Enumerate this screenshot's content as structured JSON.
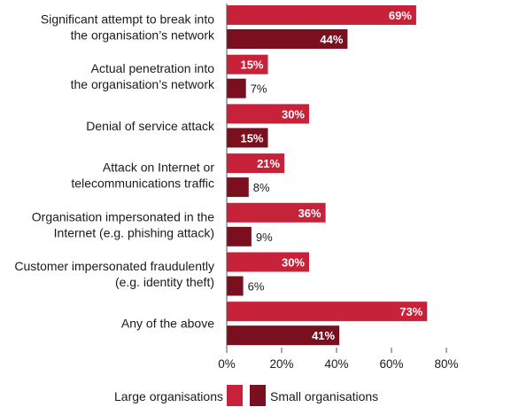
{
  "chart_data": {
    "type": "bar",
    "orientation": "horizontal",
    "categories": [
      [
        "Significant attempt to break into",
        "the organisation’s network"
      ],
      [
        "Actual penetration into",
        "the organisation’s network"
      ],
      [
        "Denial of service attack"
      ],
      [
        "Attack on Internet or",
        "telecommunications traffic"
      ],
      [
        "Organisation impersonated in the",
        "Internet (e.g. phishing attack)"
      ],
      [
        "Customer impersonated fraudulently",
        "(e.g. identity theft)"
      ],
      [
        "Any of the above"
      ]
    ],
    "series": [
      {
        "name": "Large organisations",
        "color": "#c8213a",
        "values": [
          69,
          15,
          30,
          21,
          36,
          30,
          73
        ],
        "labels": [
          "69%",
          "15%",
          "30%",
          "21%",
          "36%",
          "30%",
          "73%"
        ]
      },
      {
        "name": "Small organisations",
        "color": "#7a0f1f",
        "values": [
          44,
          7,
          15,
          8,
          9,
          6,
          41
        ],
        "labels": [
          "44%",
          "7%",
          "15%",
          "8%",
          "9%",
          "6%",
          "41%"
        ]
      }
    ],
    "xlim": [
      0,
      80
    ],
    "xticks": [
      0,
      20,
      40,
      60,
      80
    ],
    "xtick_labels": [
      "0%",
      "20%",
      "40%",
      "60%",
      "80%"
    ],
    "grid": false,
    "legend_position": "bottom"
  }
}
